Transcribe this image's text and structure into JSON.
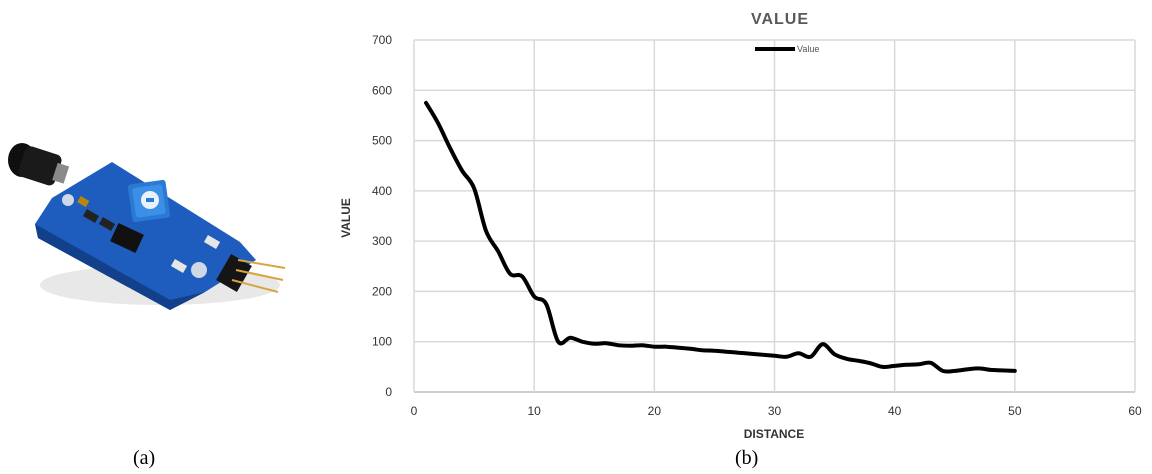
{
  "captions": {
    "a": "(a)",
    "b": "(b)"
  },
  "photo": {
    "subject": "flame-sensor-module",
    "board_color": "#1f5fbf",
    "sensor_color": "#141414",
    "pot_color": "#2f7fd6"
  },
  "chart_data": {
    "type": "line",
    "title": "VALUE",
    "xlabel": "DISTANCE",
    "ylabel": "VALUE",
    "xlim": [
      0,
      60
    ],
    "ylim": [
      0,
      700
    ],
    "xticks": [
      0,
      10,
      20,
      30,
      40,
      50,
      60
    ],
    "yticks": [
      0,
      100,
      200,
      300,
      400,
      500,
      600,
      700
    ],
    "grid": true,
    "legend": {
      "position": "top-center",
      "entries": [
        "Value"
      ]
    },
    "series": [
      {
        "name": "Value",
        "color": "#000000",
        "x": [
          1,
          2,
          3,
          4,
          5,
          6,
          7,
          8,
          9,
          10,
          11,
          12,
          13,
          14,
          15,
          16,
          17,
          18,
          19,
          20,
          21,
          22,
          23,
          24,
          25,
          26,
          27,
          28,
          29,
          30,
          31,
          32,
          33,
          34,
          35,
          36,
          37,
          38,
          39,
          40,
          41,
          42,
          43,
          44,
          45,
          46,
          47,
          48,
          49,
          50
        ],
        "values": [
          575,
          535,
          485,
          440,
          405,
          320,
          280,
          235,
          230,
          190,
          175,
          100,
          108,
          100,
          96,
          97,
          93,
          92,
          93,
          90,
          90,
          88,
          86,
          83,
          82,
          80,
          78,
          76,
          74,
          72,
          70,
          77,
          70,
          95,
          75,
          66,
          62,
          57,
          50,
          52,
          54,
          55,
          58,
          42,
          42,
          45,
          47,
          44,
          43,
          42
        ]
      }
    ]
  }
}
